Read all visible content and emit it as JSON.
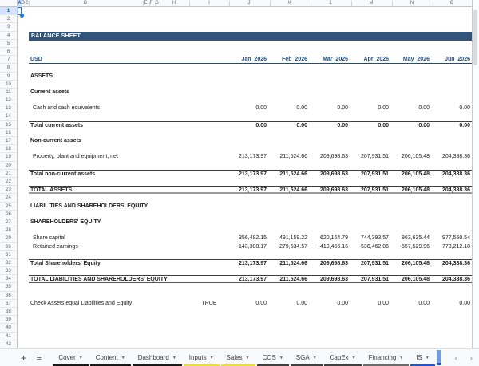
{
  "sheet": {
    "title": "BALANCE SHEET",
    "currency_label": "USD",
    "selected_cell": "A1",
    "column_headers": [
      "A",
      "B",
      "C",
      "D",
      "E",
      "F",
      "G",
      "H",
      "I",
      "J",
      "K",
      "L",
      "M",
      "N",
      "O"
    ],
    "row_count": 42,
    "months": [
      "Jan_2026",
      "Feb_2026",
      "Mar_2026",
      "Apr_2026",
      "May_2026",
      "Jun_2026"
    ],
    "rows": [
      {
        "row": 9,
        "type": "section",
        "label": "ASSETS"
      },
      {
        "row": 11,
        "type": "section",
        "label": "Current assets"
      },
      {
        "row": 13,
        "type": "item",
        "label": "Cash and cash equivalents",
        "values": [
          "0.00",
          "0.00",
          "0.00",
          "0.00",
          "0.00",
          "0.00"
        ]
      },
      {
        "row": 15,
        "type": "total",
        "label": "Total current assets",
        "values": [
          "0.00",
          "0.00",
          "0.00",
          "0.00",
          "0.00",
          "0.00"
        ]
      },
      {
        "row": 17,
        "type": "section",
        "label": "Non-current assets"
      },
      {
        "row": 19,
        "type": "item",
        "label": "Property, plant and equipment, net",
        "values": [
          "213,173.97",
          "211,524.66",
          "209,698.63",
          "207,931.51",
          "206,105.48",
          "204,338.36"
        ]
      },
      {
        "row": 21,
        "type": "total",
        "label": "Total non-current assets",
        "values": [
          "213,173.97",
          "211,524.66",
          "209,698.63",
          "207,931.51",
          "206,105.48",
          "204,338.36"
        ]
      },
      {
        "row": 23,
        "type": "grand",
        "label": "TOTAL ASSETS",
        "values": [
          "213,173.97",
          "211,524.66",
          "209,698.63",
          "207,931.51",
          "206,105.48",
          "204,338.36"
        ]
      },
      {
        "row": 25,
        "type": "section",
        "label": "LIABILITIES AND SHAREHOLDERS' EQUITY"
      },
      {
        "row": 27,
        "type": "section",
        "label": "SHAREHOLDERS' EQUITY"
      },
      {
        "row": 29,
        "type": "item",
        "label": "Share capital",
        "values": [
          "356,482.15",
          "491,159.22",
          "620,164.79",
          "744,393.57",
          "863,635.44",
          "977,550.54"
        ]
      },
      {
        "row": 30,
        "type": "item",
        "label": "Retained earnings",
        "values": [
          "-143,308.17",
          "-279,634.57",
          "-410,466.16",
          "-536,462.06",
          "-657,529.96",
          "-773,212.18"
        ]
      },
      {
        "row": 32,
        "type": "total",
        "label": "Total Shareholders' Equity",
        "values": [
          "213,173.97",
          "211,524.66",
          "209,698.63",
          "207,931.51",
          "206,105.48",
          "204,338.36"
        ]
      },
      {
        "row": 34,
        "type": "grand2",
        "label": "TOTAL LIABILITIES AND SHAREHOLDERS' EQUITY",
        "values": [
          "213,173.97",
          "211,524.66",
          "209,698.63",
          "207,931.51",
          "206,105.48",
          "204,338.36"
        ]
      },
      {
        "row": 37,
        "type": "check",
        "label": "Check Assets equal Liabilities and Equity",
        "check_value": "TRUE",
        "values": [
          "0.00",
          "0.00",
          "0.00",
          "0.00",
          "0.00",
          "0.00"
        ]
      }
    ]
  },
  "tab_bar": {
    "add_sheet_icon": "+",
    "all_sheets_icon": "≡",
    "dropdown_icon": "▼",
    "scroll_left_icon": "‹",
    "scroll_right_icon": "›",
    "active_partial_tab_color": "#6d9eeb",
    "tabs": [
      {
        "label": "Cover",
        "underline_color": "#1a1a1a"
      },
      {
        "label": "Content",
        "underline_color": "#1a1a1a"
      },
      {
        "label": "Dashboard",
        "underline_color": "#1a1a1a"
      },
      {
        "label": "Inputs",
        "underline_color": "#f2e024"
      },
      {
        "label": "Sales",
        "underline_color": "#f2e024"
      },
      {
        "label": "COS",
        "underline_color": "#3d3d3d"
      },
      {
        "label": "SGA",
        "underline_color": "#3d3d3d"
      },
      {
        "label": "CapEx",
        "underline_color": "#3d3d3d"
      },
      {
        "label": "Financing",
        "underline_color": "#6b6b6b"
      },
      {
        "label": "IS",
        "underline_color": "#1b57d0"
      }
    ]
  },
  "colors": {
    "banner_bg": "#31547a",
    "header_navy": "#1f4e78",
    "selection_blue": "#1a73e8",
    "header_strip_bg": "#f8f9fa"
  }
}
